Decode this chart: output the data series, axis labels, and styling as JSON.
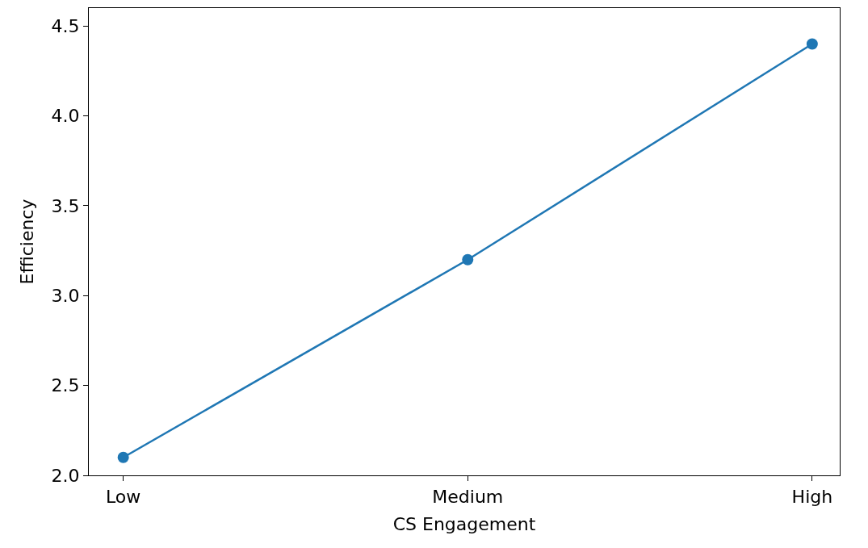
{
  "chart_data": {
    "type": "line",
    "xlabel": "CS Engagement",
    "ylabel": "Efficiency",
    "categories": [
      "Low",
      "Medium",
      "High"
    ],
    "series": [
      {
        "color": "#1f77b4",
        "values": [
          2.1,
          3.2,
          4.4
        ]
      }
    ],
    "ylim": [
      2.0,
      4.6
    ],
    "yticks": [
      {
        "value": 2,
        "label": "2.0"
      },
      2.5,
      {
        "value": 3,
        "label": "3.0"
      },
      3.5,
      {
        "value": 4,
        "label": "4.0"
      },
      4.5
    ],
    "marker": "circle",
    "line_style": "solid"
  }
}
